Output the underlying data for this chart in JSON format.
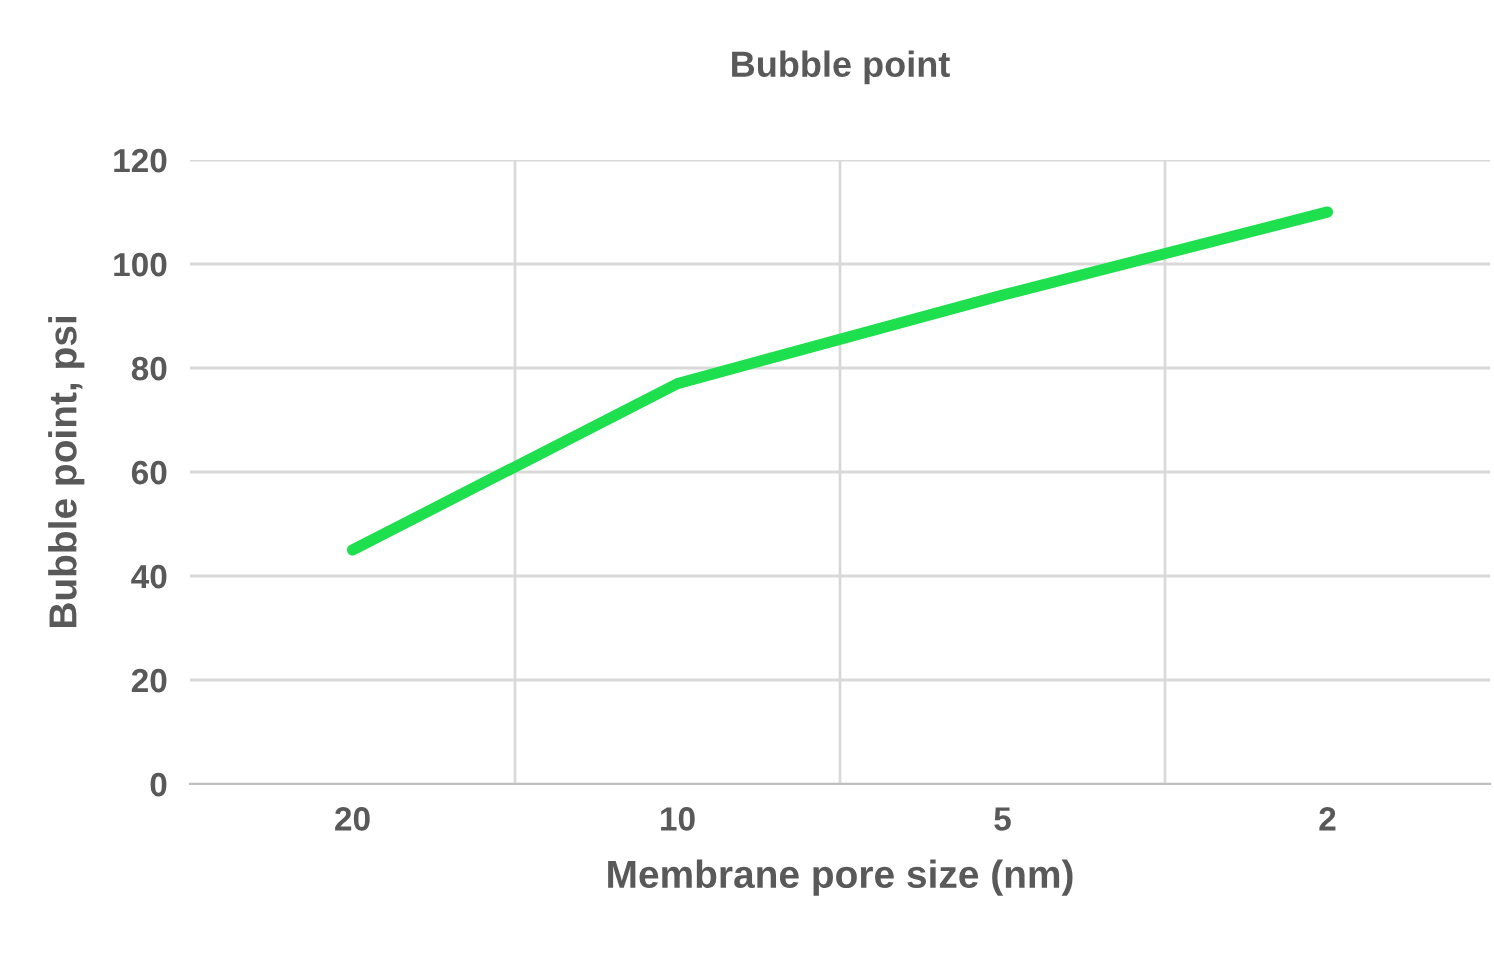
{
  "chart_data": {
    "type": "line",
    "title": "Bubble point",
    "xlabel": "Membrane pore size (nm)",
    "ylabel": "Bubble point, psi",
    "categories": [
      "20",
      "10",
      "5",
      "2"
    ],
    "series": [
      {
        "color": "#1ee04e",
        "values": [
          45,
          77,
          94,
          110
        ]
      }
    ],
    "ylim": [
      0,
      120
    ],
    "yticks": [
      0,
      20,
      40,
      60,
      80,
      100,
      120
    ],
    "grid": true,
    "marker": "none",
    "line_style": "solid"
  }
}
